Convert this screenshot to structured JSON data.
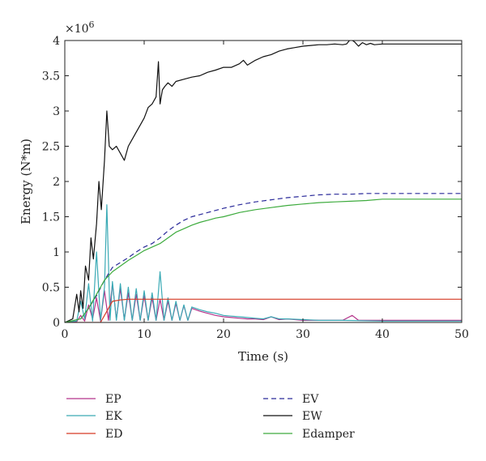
{
  "chart_data": {
    "type": "line",
    "title": "",
    "xlabel": "Time (s)",
    "ylabel": "Energy (N*m)",
    "y_multiplier_label": "×10",
    "y_multiplier_exp": "6",
    "xlim": [
      0,
      50
    ],
    "ylim": [
      0,
      4
    ],
    "x_ticks": [
      0,
      10,
      20,
      30,
      40,
      50
    ],
    "x_tick_labels": [
      "0",
      "10",
      "20",
      "30",
      "40",
      "50"
    ],
    "y_ticks": [
      0,
      0.5,
      1,
      1.5,
      2,
      2.5,
      3,
      3.5,
      4
    ],
    "y_tick_labels": [
      "0",
      "0.5",
      "1",
      "1.5",
      "2",
      "2.5",
      "3",
      "3.5",
      "4"
    ],
    "grid": false,
    "legend_position": "below",
    "series": [
      {
        "name": "EP",
        "color": "#b5338a",
        "dash": "solid",
        "x": [
          0,
          1.5,
          2,
          2.5,
          3,
          3.5,
          4,
          4.5,
          5,
          5.5,
          6,
          6.5,
          7,
          7.5,
          8,
          8.5,
          9,
          9.5,
          10,
          10.5,
          11,
          11.5,
          12,
          12.5,
          13,
          13.5,
          14,
          14.5,
          15,
          15.5,
          16,
          17,
          18,
          19,
          20,
          21,
          22,
          23,
          24,
          25,
          26,
          27,
          28,
          30,
          32,
          35,
          36.2,
          37,
          40,
          50
        ],
        "y": [
          0,
          0.01,
          0.1,
          0.02,
          0.25,
          0.05,
          0.35,
          0.02,
          0.45,
          0.03,
          0.55,
          0.05,
          0.48,
          0.04,
          0.42,
          0.03,
          0.4,
          0.03,
          0.38,
          0.03,
          0.35,
          0.03,
          0.33,
          0.03,
          0.3,
          0.03,
          0.27,
          0.03,
          0.24,
          0.03,
          0.2,
          0.16,
          0.13,
          0.1,
          0.08,
          0.07,
          0.06,
          0.05,
          0.05,
          0.04,
          0.08,
          0.04,
          0.05,
          0.03,
          0.03,
          0.03,
          0.1,
          0.03,
          0.03,
          0.03
        ]
      },
      {
        "name": "EK",
        "color": "#3aaab5",
        "dash": "solid",
        "x": [
          0,
          1.5,
          2,
          2.5,
          3,
          3.5,
          4,
          4.5,
          5,
          5.3,
          5.7,
          6,
          6.5,
          7,
          7.5,
          8,
          8.5,
          9,
          9.5,
          10,
          10.5,
          11,
          11.5,
          12,
          12.5,
          13,
          13.5,
          14,
          14.5,
          15,
          15.5,
          16,
          17,
          18,
          19,
          20,
          21,
          22,
          23,
          24,
          25,
          26,
          27,
          28,
          30,
          32,
          35,
          40,
          50
        ],
        "y": [
          0,
          0.02,
          0.3,
          0.05,
          0.55,
          0.02,
          1.0,
          0.03,
          0.5,
          1.67,
          0.03,
          0.58,
          0.03,
          0.55,
          0.03,
          0.5,
          0.03,
          0.48,
          0.03,
          0.45,
          0.03,
          0.42,
          0.03,
          0.72,
          0.03,
          0.35,
          0.03,
          0.3,
          0.03,
          0.25,
          0.03,
          0.22,
          0.18,
          0.15,
          0.13,
          0.1,
          0.09,
          0.08,
          0.07,
          0.06,
          0.05,
          0.08,
          0.05,
          0.05,
          0.04,
          0.03,
          0.03,
          0.02,
          0.02
        ]
      },
      {
        "name": "ED",
        "color": "#d63a24",
        "dash": "solid",
        "x": [
          0,
          4.5,
          5,
          5.5,
          6,
          7,
          8,
          10,
          20,
          30,
          40,
          50
        ],
        "y": [
          0,
          0,
          0.1,
          0.2,
          0.3,
          0.32,
          0.33,
          0.33,
          0.33,
          0.33,
          0.33,
          0.33
        ]
      },
      {
        "name": "EV",
        "color": "#2a2a9a",
        "dash": "dashed",
        "x": [
          0,
          2,
          3,
          4,
          5,
          6,
          7,
          8,
          9,
          10,
          11,
          12,
          13,
          14,
          15,
          16,
          17,
          18,
          19,
          20,
          22,
          24,
          26,
          28,
          30,
          32,
          34,
          36,
          38,
          40,
          45,
          50
        ],
        "y": [
          0,
          0.05,
          0.2,
          0.38,
          0.6,
          0.78,
          0.85,
          0.92,
          1.0,
          1.07,
          1.12,
          1.2,
          1.3,
          1.38,
          1.45,
          1.5,
          1.53,
          1.56,
          1.59,
          1.62,
          1.67,
          1.71,
          1.74,
          1.77,
          1.79,
          1.81,
          1.82,
          1.82,
          1.83,
          1.83,
          1.83,
          1.83
        ]
      },
      {
        "name": "EW",
        "color": "#111111",
        "dash": "solid",
        "x": [
          0,
          1,
          1.5,
          1.8,
          2,
          2.3,
          2.6,
          3,
          3.3,
          3.6,
          4,
          4.3,
          4.6,
          5,
          5.3,
          5.6,
          6,
          6.5,
          7,
          7.5,
          8,
          8.5,
          9,
          9.5,
          10,
          10.5,
          11,
          11.5,
          11.8,
          12,
          12.3,
          12.6,
          13,
          13.5,
          14,
          15,
          16,
          17,
          18,
          19,
          20,
          21,
          22,
          22.5,
          23,
          24,
          25,
          26,
          27,
          28,
          29,
          30,
          31,
          32,
          33,
          34,
          35,
          35.5,
          36,
          36.5,
          37,
          37.5,
          38,
          38.5,
          39,
          40,
          45,
          50
        ],
        "y": [
          0,
          0.05,
          0.4,
          0.15,
          0.45,
          0.2,
          0.8,
          0.6,
          1.2,
          0.9,
          1.4,
          2.0,
          1.6,
          2.3,
          3.0,
          2.5,
          2.45,
          2.5,
          2.4,
          2.3,
          2.5,
          2.6,
          2.7,
          2.8,
          2.9,
          3.05,
          3.1,
          3.2,
          3.7,
          3.1,
          3.3,
          3.35,
          3.4,
          3.35,
          3.42,
          3.45,
          3.48,
          3.5,
          3.55,
          3.58,
          3.62,
          3.62,
          3.67,
          3.72,
          3.65,
          3.72,
          3.77,
          3.8,
          3.85,
          3.88,
          3.9,
          3.92,
          3.93,
          3.94,
          3.94,
          3.95,
          3.94,
          3.95,
          4.02,
          3.98,
          3.92,
          3.97,
          3.94,
          3.96,
          3.94,
          3.95,
          3.95,
          3.95
        ]
      },
      {
        "name": "Edamper",
        "color": "#3dab3d",
        "dash": "solid",
        "x": [
          0,
          2,
          3,
          4,
          5,
          6,
          7,
          8,
          9,
          10,
          11,
          12,
          13,
          14,
          15,
          16,
          17,
          18,
          19,
          20,
          22,
          24,
          26,
          28,
          30,
          32,
          34,
          36,
          38,
          40,
          45,
          50
        ],
        "y": [
          0,
          0.05,
          0.2,
          0.4,
          0.6,
          0.72,
          0.8,
          0.88,
          0.95,
          1.02,
          1.07,
          1.12,
          1.2,
          1.28,
          1.33,
          1.38,
          1.42,
          1.45,
          1.48,
          1.5,
          1.56,
          1.6,
          1.63,
          1.66,
          1.68,
          1.7,
          1.71,
          1.72,
          1.73,
          1.75,
          1.75,
          1.75
        ]
      }
    ]
  }
}
